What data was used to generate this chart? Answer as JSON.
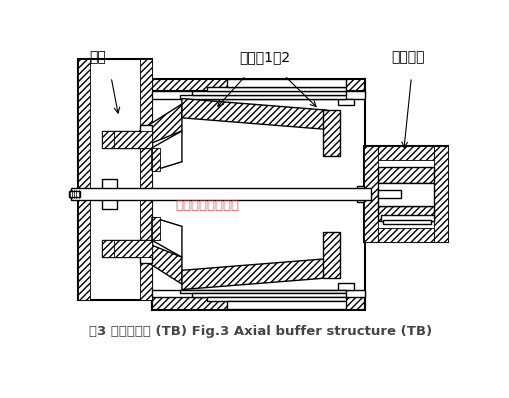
{
  "title": "图3 机芯结构图 (TB) Fig.3 Axial buffer structure (TB)",
  "title_fontsize": 9.5,
  "label_zhu_zhou": "主轴",
  "label_zhu_zhou_cheng": "主轴承1、2",
  "label_tui_li": "推力轴承",
  "watermark": "江苏华云流量计厂",
  "bg_color": "#ffffff",
  "line_color": "#000000",
  "watermark_color": "#cc3333",
  "title_color": "#444444"
}
